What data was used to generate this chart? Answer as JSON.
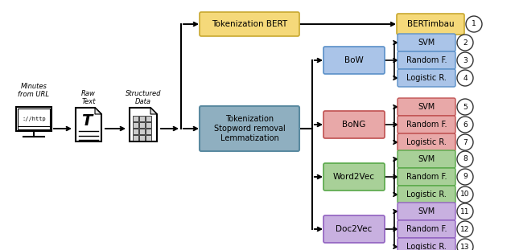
{
  "fig_width": 6.4,
  "fig_height": 3.11,
  "dpi": 100,
  "bg_color": "#ffffff",
  "bert_box": {
    "color": "#f5d97a",
    "edgecolor": "#c8a830",
    "text": "Tokenization BERT"
  },
  "bert_result_box": {
    "color": "#f5d97a",
    "edgecolor": "#c8a830",
    "text": "BERTimbau"
  },
  "tok_box": {
    "color": "#8fafc0",
    "edgecolor": "#5a8aa0",
    "text": "Tokenization\nStopword removal\nLemmatization"
  },
  "bow_box": {
    "color": "#aac4e8",
    "edgecolor": "#5a90c8",
    "text": "BoW"
  },
  "bong_box": {
    "color": "#e8a8a8",
    "edgecolor": "#c05050",
    "text": "BoNG"
  },
  "w2v_box": {
    "color": "#a8d098",
    "edgecolor": "#58a848",
    "text": "Word2Vec"
  },
  "d2v_box": {
    "color": "#c8b0e0",
    "edgecolor": "#9060c0",
    "text": "Doc2Vec"
  },
  "result_groups": [
    {
      "key": "bert",
      "items": [
        {
          "text": "BERTimbau",
          "num": "1",
          "color": "#f5d97a",
          "edgecolor": "#c8a830"
        }
      ]
    },
    {
      "key": "bow",
      "items": [
        {
          "text": "SVM",
          "num": "2",
          "color": "#aac4e8",
          "edgecolor": "#5a90c8"
        },
        {
          "text": "Random F.",
          "num": "3",
          "color": "#aac4e8",
          "edgecolor": "#5a90c8"
        },
        {
          "text": "Logistic R.",
          "num": "4",
          "color": "#aac4e8",
          "edgecolor": "#5a90c8"
        }
      ]
    },
    {
      "key": "bong",
      "items": [
        {
          "text": "SVM",
          "num": "5",
          "color": "#e8a8a8",
          "edgecolor": "#c05050"
        },
        {
          "text": "Random F.",
          "num": "6",
          "color": "#e8a8a8",
          "edgecolor": "#c05050"
        },
        {
          "text": "Logistic R.",
          "num": "7",
          "color": "#e8a8a8",
          "edgecolor": "#c05050"
        }
      ]
    },
    {
      "key": "w2v",
      "items": [
        {
          "text": "SVM",
          "num": "8",
          "color": "#a8d098",
          "edgecolor": "#58a848"
        },
        {
          "text": "Random F.",
          "num": "9",
          "color": "#a8d098",
          "edgecolor": "#58a848"
        },
        {
          "text": "Logistic R.",
          "num": "10",
          "color": "#a8d098",
          "edgecolor": "#58a848"
        }
      ]
    },
    {
      "key": "d2v",
      "items": [
        {
          "text": "SVM",
          "num": "11",
          "color": "#c8b0e0",
          "edgecolor": "#9060c0"
        },
        {
          "text": "Random F.",
          "num": "12",
          "color": "#c8b0e0",
          "edgecolor": "#9060c0"
        },
        {
          "text": "Logistic R.",
          "num": "13",
          "color": "#c8b0e0",
          "edgecolor": "#9060c0"
        }
      ]
    }
  ]
}
